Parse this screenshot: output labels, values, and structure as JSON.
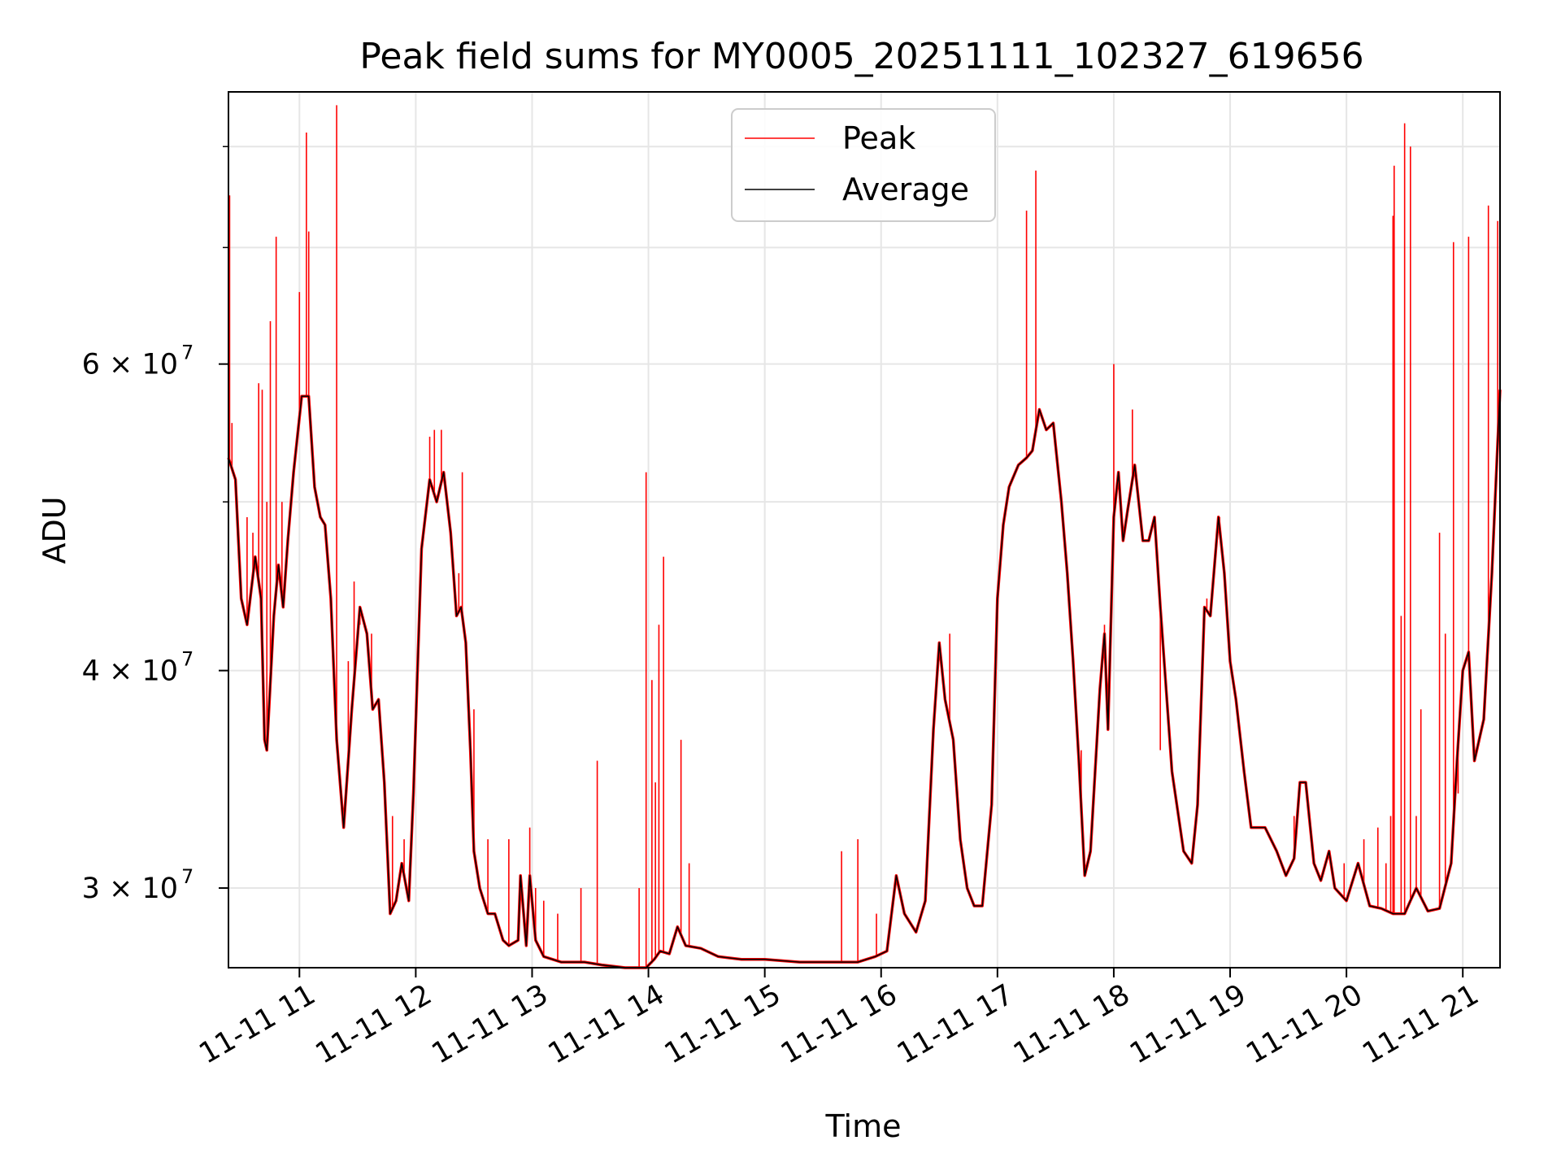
{
  "chart_data": {
    "type": "line",
    "title": "Peak field sums for MY0005_20251111_102327_619656",
    "xlabel": "Time",
    "ylabel": "ADU",
    "yscale": "log",
    "ylim": [
      27000000,
      86000000
    ],
    "xlim": [
      10.39,
      21.32
    ],
    "grid": true,
    "legend_position": "upper center",
    "x_ticks": [
      {
        "value": 11,
        "label": "11-11 11"
      },
      {
        "value": 12,
        "label": "11-11 12"
      },
      {
        "value": 13,
        "label": "11-11 13"
      },
      {
        "value": 14,
        "label": "11-11 14"
      },
      {
        "value": 15,
        "label": "11-11 15"
      },
      {
        "value": 16,
        "label": "11-11 16"
      },
      {
        "value": 17,
        "label": "11-11 17"
      },
      {
        "value": 18,
        "label": "11-11 18"
      },
      {
        "value": 19,
        "label": "11-11 19"
      },
      {
        "value": 20,
        "label": "11-11 20"
      },
      {
        "value": 21,
        "label": "11-11 21"
      }
    ],
    "y_ticks": [
      {
        "value": 30000000,
        "label": "3 × 10",
        "exp": "7"
      },
      {
        "value": 40000000,
        "label": "4 × 10",
        "exp": "7"
      },
      {
        "value": 60000000,
        "label": "6 × 10",
        "exp": "7"
      }
    ],
    "y_minor_ticks": [
      50000000,
      70000000,
      80000000
    ],
    "series": [
      {
        "name": "Average",
        "color": "#000000",
        "points": [
          [
            10.39,
            53000000
          ],
          [
            10.45,
            51500000
          ],
          [
            10.5,
            44000000
          ],
          [
            10.55,
            42500000
          ],
          [
            10.62,
            46500000
          ],
          [
            10.67,
            44000000
          ],
          [
            10.7,
            36500000
          ],
          [
            10.72,
            36000000
          ],
          [
            10.78,
            43000000
          ],
          [
            10.82,
            46000000
          ],
          [
            10.86,
            43500000
          ],
          [
            10.9,
            47500000
          ],
          [
            10.95,
            52000000
          ],
          [
            11.02,
            57500000
          ],
          [
            11.08,
            57500000
          ],
          [
            11.13,
            51000000
          ],
          [
            11.18,
            49000000
          ],
          [
            11.22,
            48500000
          ],
          [
            11.27,
            44000000
          ],
          [
            11.32,
            36500000
          ],
          [
            11.38,
            32500000
          ],
          [
            11.45,
            38000000
          ],
          [
            11.52,
            43500000
          ],
          [
            11.58,
            42000000
          ],
          [
            11.63,
            38000000
          ],
          [
            11.68,
            38500000
          ],
          [
            11.73,
            34500000
          ],
          [
            11.78,
            29000000
          ],
          [
            11.83,
            29500000
          ],
          [
            11.88,
            31000000
          ],
          [
            11.94,
            29500000
          ],
          [
            11.98,
            34000000
          ],
          [
            12.05,
            47000000
          ],
          [
            12.12,
            51500000
          ],
          [
            12.18,
            50000000
          ],
          [
            12.24,
            52000000
          ],
          [
            12.3,
            48000000
          ],
          [
            12.35,
            43000000
          ],
          [
            12.39,
            43500000
          ],
          [
            12.43,
            41500000
          ],
          [
            12.47,
            36000000
          ],
          [
            12.5,
            31500000
          ],
          [
            12.55,
            30000000
          ],
          [
            12.62,
            29000000
          ],
          [
            12.68,
            29000000
          ],
          [
            12.75,
            28000000
          ],
          [
            12.8,
            27800000
          ],
          [
            12.88,
            28000000
          ],
          [
            12.9,
            30500000
          ],
          [
            12.95,
            27800000
          ],
          [
            12.98,
            30500000
          ],
          [
            13.03,
            28000000
          ],
          [
            13.1,
            27400000
          ],
          [
            13.25,
            27200000
          ],
          [
            13.45,
            27200000
          ],
          [
            13.6,
            27100000
          ],
          [
            13.8,
            27000000
          ],
          [
            13.98,
            26800000
          ],
          [
            14.05,
            27300000
          ],
          [
            14.1,
            27600000
          ],
          [
            14.18,
            27500000
          ],
          [
            14.25,
            28500000
          ],
          [
            14.32,
            27800000
          ],
          [
            14.45,
            27700000
          ],
          [
            14.6,
            27400000
          ],
          [
            14.8,
            27300000
          ],
          [
            15.0,
            27300000
          ],
          [
            15.3,
            27200000
          ],
          [
            15.6,
            27200000
          ],
          [
            15.8,
            27200000
          ],
          [
            15.95,
            27400000
          ],
          [
            16.05,
            27600000
          ],
          [
            16.13,
            30500000
          ],
          [
            16.2,
            29000000
          ],
          [
            16.3,
            28300000
          ],
          [
            16.38,
            29500000
          ],
          [
            16.45,
            37000000
          ],
          [
            16.5,
            41500000
          ],
          [
            16.55,
            38500000
          ],
          [
            16.62,
            36500000
          ],
          [
            16.68,
            32000000
          ],
          [
            16.74,
            30000000
          ],
          [
            16.8,
            29300000
          ],
          [
            16.87,
            29300000
          ],
          [
            16.95,
            33500000
          ],
          [
            17.0,
            44000000
          ],
          [
            17.05,
            48500000
          ],
          [
            17.1,
            51000000
          ],
          [
            17.18,
            52500000
          ],
          [
            17.25,
            53000000
          ],
          [
            17.3,
            53500000
          ],
          [
            17.36,
            56500000
          ],
          [
            17.42,
            55000000
          ],
          [
            17.48,
            55500000
          ],
          [
            17.55,
            50000000
          ],
          [
            17.6,
            45500000
          ],
          [
            17.65,
            40500000
          ],
          [
            17.7,
            35500000
          ],
          [
            17.75,
            30500000
          ],
          [
            17.8,
            31500000
          ],
          [
            17.88,
            39000000
          ],
          [
            17.92,
            42000000
          ],
          [
            17.95,
            37000000
          ],
          [
            18.0,
            49000000
          ],
          [
            18.04,
            52000000
          ],
          [
            18.08,
            47500000
          ],
          [
            18.12,
            49500000
          ],
          [
            18.18,
            52500000
          ],
          [
            18.25,
            47500000
          ],
          [
            18.3,
            47500000
          ],
          [
            18.35,
            49000000
          ],
          [
            18.4,
            43500000
          ],
          [
            18.5,
            35000000
          ],
          [
            18.6,
            31500000
          ],
          [
            18.67,
            31000000
          ],
          [
            18.72,
            33500000
          ],
          [
            18.78,
            43500000
          ],
          [
            18.83,
            43000000
          ],
          [
            18.9,
            49000000
          ],
          [
            18.95,
            45500000
          ],
          [
            19.0,
            40500000
          ],
          [
            19.05,
            38500000
          ],
          [
            19.12,
            35000000
          ],
          [
            19.18,
            32500000
          ],
          [
            19.3,
            32500000
          ],
          [
            19.4,
            31500000
          ],
          [
            19.48,
            30500000
          ],
          [
            19.55,
            31200000
          ],
          [
            19.6,
            34500000
          ],
          [
            19.65,
            34500000
          ],
          [
            19.72,
            31000000
          ],
          [
            19.78,
            30300000
          ],
          [
            19.85,
            31500000
          ],
          [
            19.9,
            30000000
          ],
          [
            20.0,
            29500000
          ],
          [
            20.1,
            31000000
          ],
          [
            20.2,
            29300000
          ],
          [
            20.3,
            29200000
          ],
          [
            20.4,
            29000000
          ],
          [
            20.5,
            29000000
          ],
          [
            20.55,
            29500000
          ],
          [
            20.6,
            30000000
          ],
          [
            20.7,
            29100000
          ],
          [
            20.8,
            29200000
          ],
          [
            20.9,
            31000000
          ],
          [
            20.95,
            35500000
          ],
          [
            21.0,
            40000000
          ],
          [
            21.05,
            41000000
          ],
          [
            21.1,
            35500000
          ],
          [
            21.18,
            37500000
          ],
          [
            21.25,
            45500000
          ],
          [
            21.32,
            58000000
          ]
        ]
      },
      {
        "name": "Peak",
        "color": "#ff0000",
        "spikes": [
          [
            10.4,
            75000000
          ],
          [
            10.42,
            55500000
          ],
          [
            10.55,
            49000000
          ],
          [
            10.6,
            48000000
          ],
          [
            10.65,
            58500000
          ],
          [
            10.68,
            58000000
          ],
          [
            10.72,
            50000000
          ],
          [
            10.75,
            63500000
          ],
          [
            10.8,
            71000000
          ],
          [
            10.85,
            50000000
          ],
          [
            11.0,
            66000000
          ],
          [
            11.06,
            81500000
          ],
          [
            11.08,
            71500000
          ],
          [
            11.32,
            84500000
          ],
          [
            11.42,
            40500000
          ],
          [
            11.47,
            45000000
          ],
          [
            11.52,
            42500000
          ],
          [
            11.62,
            42000000
          ],
          [
            11.8,
            33000000
          ],
          [
            11.9,
            32000000
          ],
          [
            12.12,
            54500000
          ],
          [
            12.16,
            55000000
          ],
          [
            12.22,
            55000000
          ],
          [
            12.37,
            45500000
          ],
          [
            12.4,
            52000000
          ],
          [
            12.5,
            38000000
          ],
          [
            12.62,
            32000000
          ],
          [
            12.8,
            32000000
          ],
          [
            12.98,
            32500000
          ],
          [
            13.03,
            30000000
          ],
          [
            13.1,
            29500000
          ],
          [
            13.22,
            29000000
          ],
          [
            13.42,
            30000000
          ],
          [
            13.56,
            35500000
          ],
          [
            13.92,
            30000000
          ],
          [
            13.98,
            52000000
          ],
          [
            14.03,
            39500000
          ],
          [
            14.06,
            34500000
          ],
          [
            14.09,
            42500000
          ],
          [
            14.13,
            46500000
          ],
          [
            14.28,
            36500000
          ],
          [
            14.35,
            31000000
          ],
          [
            15.66,
            31500000
          ],
          [
            15.8,
            32000000
          ],
          [
            15.96,
            29000000
          ],
          [
            16.5,
            41000000
          ],
          [
            16.59,
            42000000
          ],
          [
            17.25,
            73500000
          ],
          [
            17.33,
            77500000
          ],
          [
            17.72,
            36000000
          ],
          [
            17.92,
            42500000
          ],
          [
            18.0,
            60000000
          ],
          [
            18.16,
            56500000
          ],
          [
            18.4,
            36000000
          ],
          [
            18.8,
            44000000
          ],
          [
            18.91,
            49000000
          ],
          [
            19.55,
            33000000
          ],
          [
            19.98,
            31000000
          ],
          [
            20.15,
            32000000
          ],
          [
            20.27,
            32500000
          ],
          [
            20.34,
            31000000
          ],
          [
            20.38,
            33000000
          ],
          [
            20.4,
            73000000
          ],
          [
            20.41,
            78000000
          ],
          [
            20.47,
            43000000
          ],
          [
            20.5,
            82500000
          ],
          [
            20.55,
            80000000
          ],
          [
            20.6,
            33000000
          ],
          [
            20.64,
            38000000
          ],
          [
            20.8,
            48000000
          ],
          [
            20.85,
            42000000
          ],
          [
            20.92,
            70500000
          ],
          [
            20.96,
            34000000
          ],
          [
            21.05,
            71000000
          ],
          [
            21.22,
            74000000
          ],
          [
            21.3,
            72500000
          ]
        ]
      }
    ]
  }
}
